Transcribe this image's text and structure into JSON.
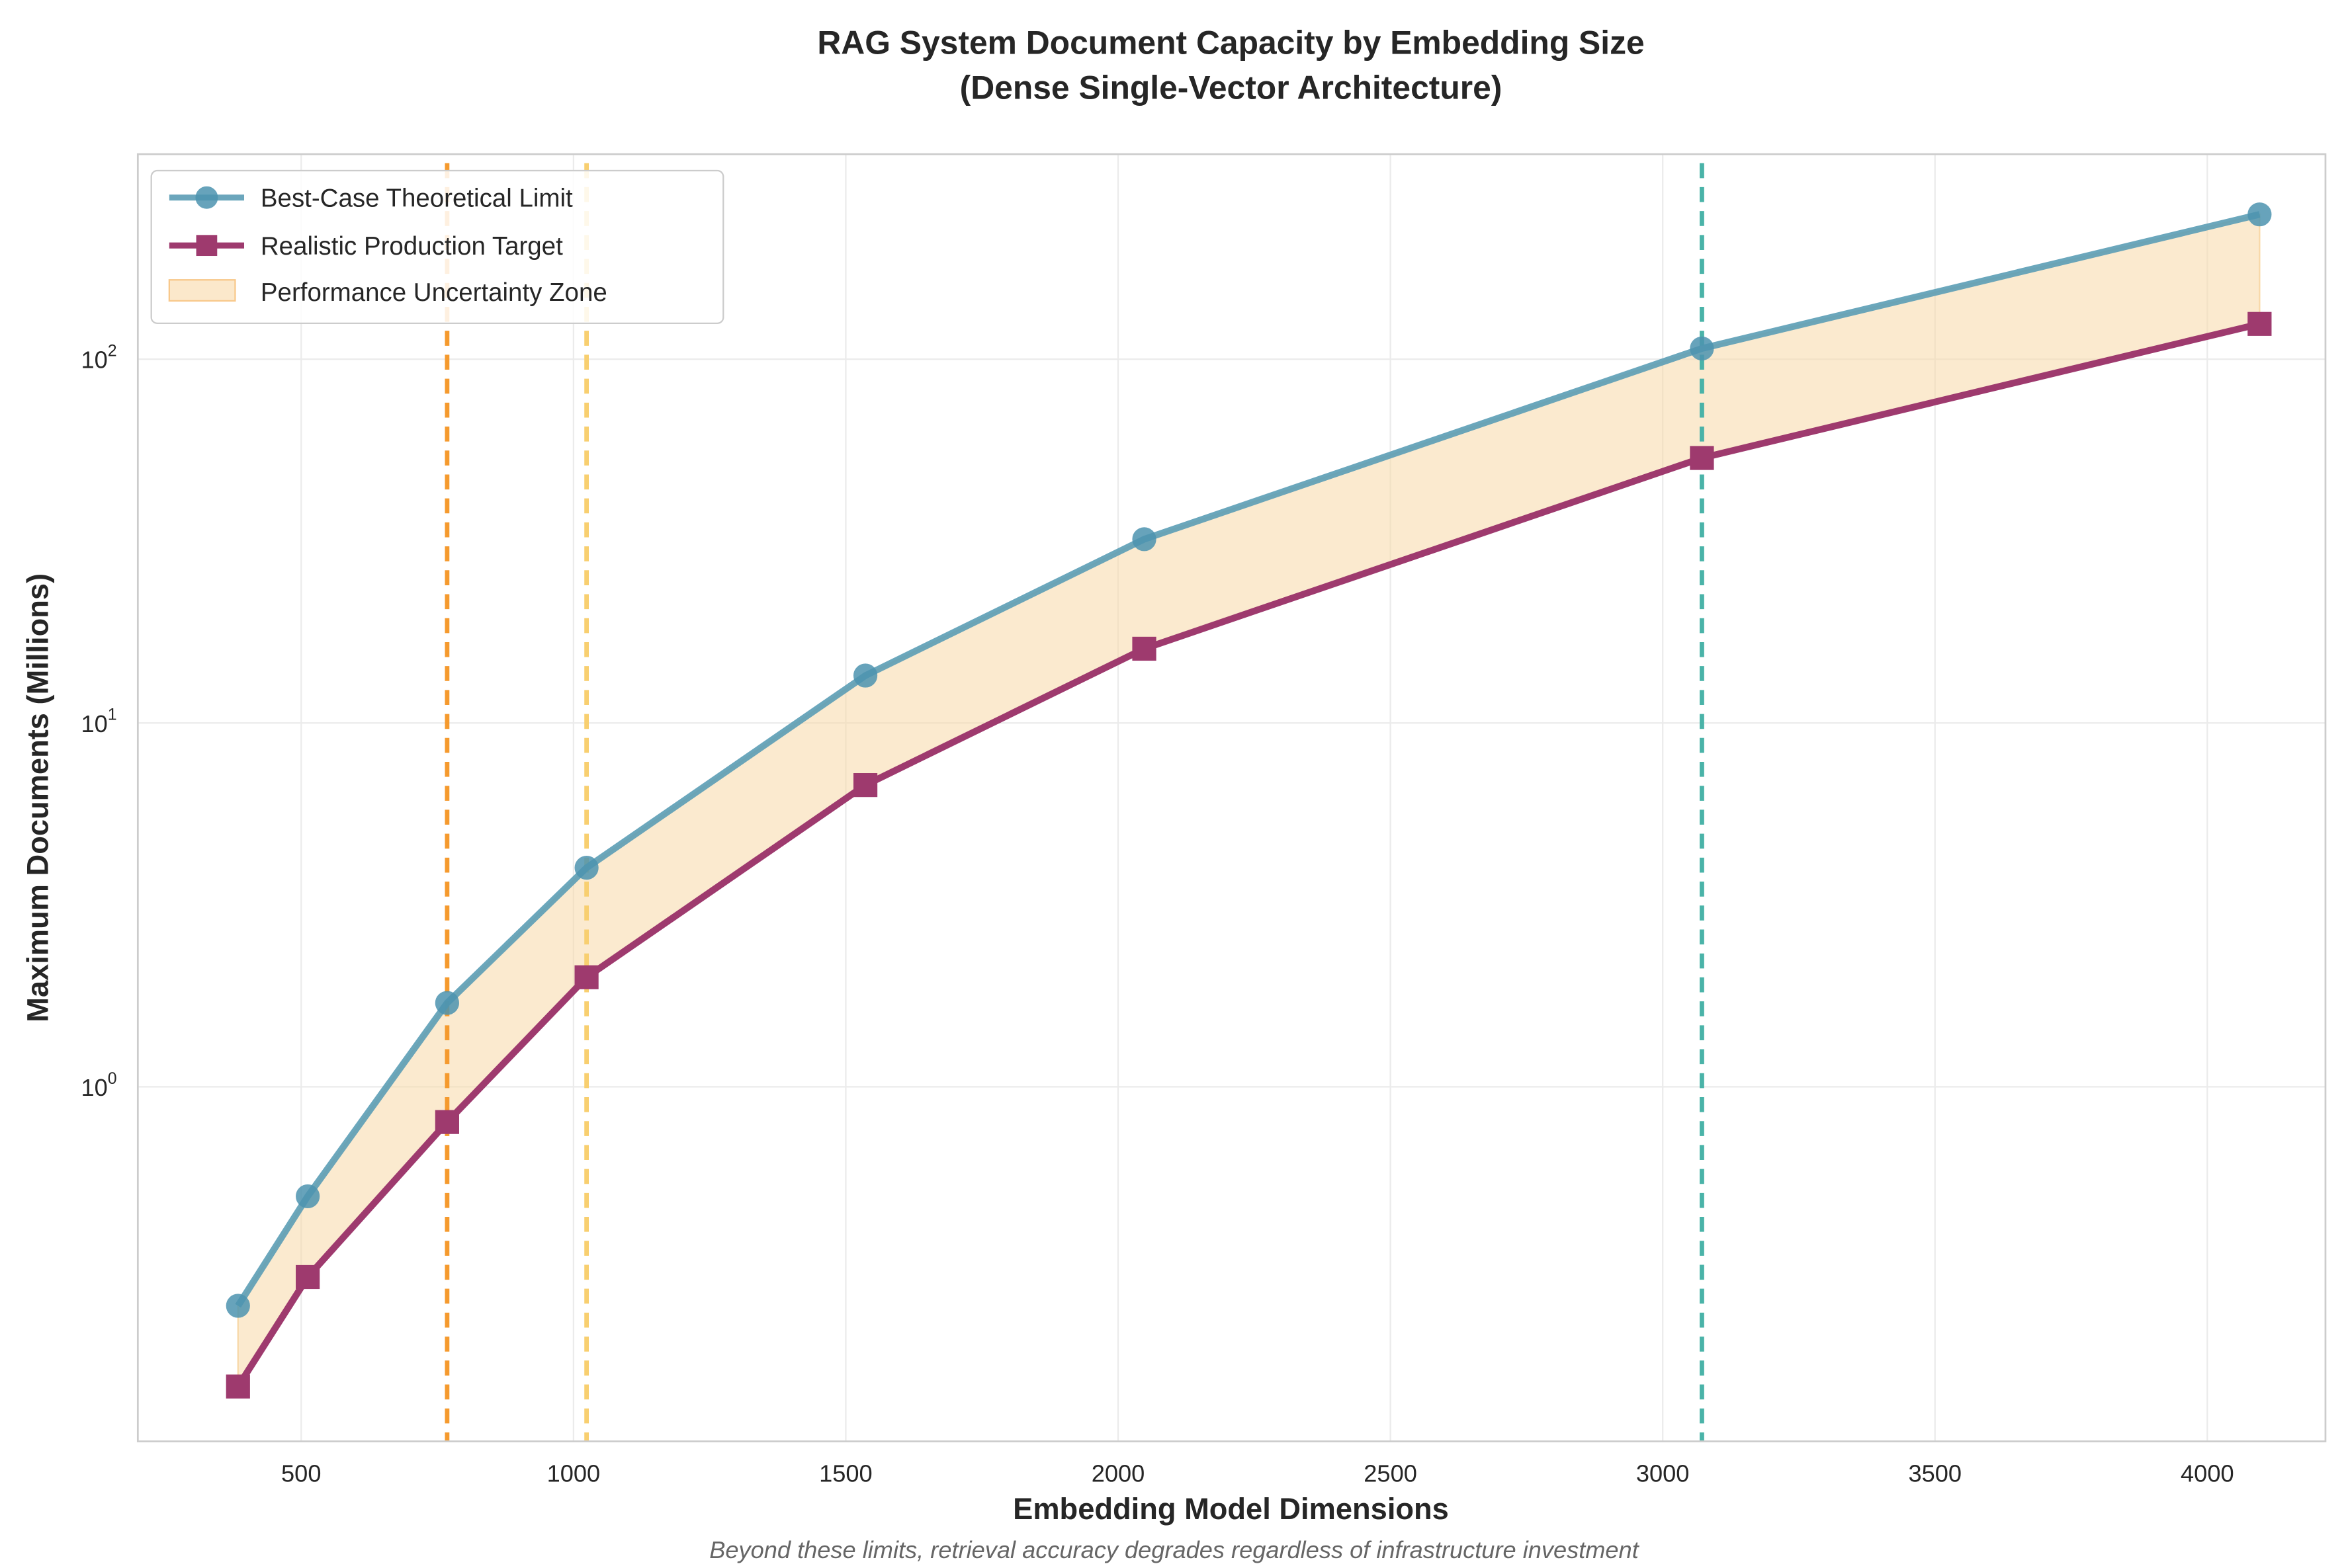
{
  "chart_data": {
    "type": "line",
    "title": "RAG System Document Capacity by Embedding Size",
    "subtitle": "(Dense Single-Vector Architecture)",
    "xlabel": "Embedding Model Dimensions",
    "ylabel": "Maximum Documents (Millions)",
    "footnote": "Beyond these limits, retrieval accuracy degrades regardless of infrastructure investment",
    "x": [
      384,
      512,
      768,
      1024,
      1536,
      2048,
      3072,
      4096
    ],
    "series": [
      {
        "name": "Best-Case Theoretical Limit",
        "marker": "circle",
        "color": "#5b9db5",
        "values": [
          0.25,
          0.5,
          1.7,
          4,
          13.5,
          32,
          107,
          250
        ]
      },
      {
        "name": "Realistic Production Target",
        "marker": "square",
        "color": "#9e3a6e",
        "values": [
          0.15,
          0.3,
          0.8,
          2,
          6.75,
          16,
          53.5,
          125
        ]
      }
    ],
    "fill_between": {
      "name": "Performance Uncertainty Zone",
      "color": "#f8d8a8"
    },
    "vertical_lines": [
      {
        "x": 768,
        "color": "#f59a2e"
      },
      {
        "x": 1024,
        "color": "#f8cf70"
      },
      {
        "x": 3072,
        "color": "#4ab3a8"
      }
    ],
    "xlim": [
      200,
      4217
    ],
    "ylim": [
      0.106,
      366
    ],
    "yscale": "log",
    "xticks": [
      "500",
      "1000",
      "1500",
      "2000",
      "2500",
      "3000",
      "3500",
      "4000"
    ],
    "yticks": [
      {
        "value": 1,
        "label": "10",
        "exp": "0"
      },
      {
        "value": 10,
        "label": "10",
        "exp": "1"
      },
      {
        "value": 100,
        "label": "10",
        "exp": "2"
      }
    ],
    "grid": true,
    "legend_position": "top-left"
  }
}
